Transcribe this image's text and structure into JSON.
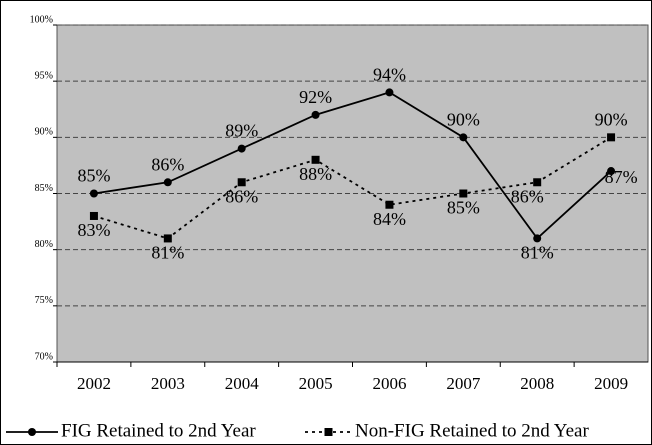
{
  "chart_data": {
    "type": "line",
    "categories": [
      "2002",
      "2003",
      "2004",
      "2005",
      "2006",
      "2007",
      "2008",
      "2009"
    ],
    "series": [
      {
        "name": "FIG Retained to 2nd Year",
        "color": "#000000",
        "line_style": "solid",
        "marker": "circle",
        "values": [
          85,
          86,
          89,
          92,
          94,
          90,
          81,
          87
        ],
        "value_labels": [
          "85%",
          "86%",
          "89%",
          "92%",
          "94%",
          "90%",
          "81%",
          "87%"
        ]
      },
      {
        "name": "Non-FIG Retained to 2nd Year",
        "color": "#000000",
        "line_style": "dotted",
        "marker": "square",
        "values": [
          83,
          81,
          86,
          88,
          84,
          85,
          86,
          90
        ],
        "value_labels": [
          "83%",
          "81%",
          "86%",
          "88%",
          "84%",
          "85%",
          "86%",
          "90%"
        ]
      }
    ],
    "ylim": [
      70,
      100
    ],
    "yticks": [
      {
        "value": 70,
        "label": "70%"
      },
      {
        "value": 75,
        "label": "75%"
      },
      {
        "value": 80,
        "label": "80%"
      },
      {
        "value": 85,
        "label": "85%"
      },
      {
        "value": 90,
        "label": "90%"
      },
      {
        "value": 95,
        "label": "95%"
      },
      {
        "value": 100,
        "label": "100%"
      }
    ],
    "grid": true,
    "plot_background": "#c0c0c0"
  }
}
